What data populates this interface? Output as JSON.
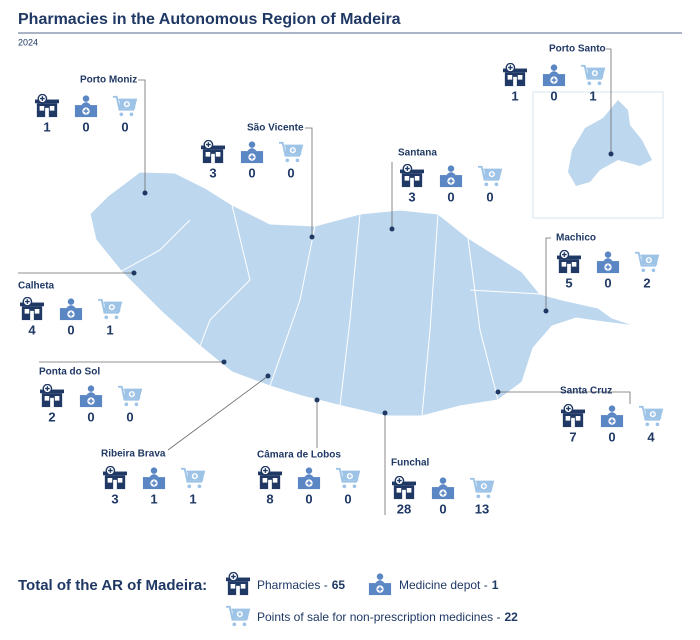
{
  "header": {
    "title": "Pharmacies in the Autonomous Region of Madeira",
    "subtitle": "2024"
  },
  "municipalities": [
    {
      "name": "Porto Moniz",
      "pharmacies": 1,
      "medicine_depots": 0,
      "points_of_sale": 0
    },
    {
      "name": "São Vicente",
      "pharmacies": 3,
      "medicine_depots": 0,
      "points_of_sale": 0
    },
    {
      "name": "Santana",
      "pharmacies": 3,
      "medicine_depots": 0,
      "points_of_sale": 0
    },
    {
      "name": "Porto Santo",
      "pharmacies": 1,
      "medicine_depots": 0,
      "points_of_sale": 1
    },
    {
      "name": "Machico",
      "pharmacies": 5,
      "medicine_depots": 0,
      "points_of_sale": 2
    },
    {
      "name": "Calheta",
      "pharmacies": 4,
      "medicine_depots": 0,
      "points_of_sale": 1
    },
    {
      "name": "Ponta do Sol",
      "pharmacies": 2,
      "medicine_depots": 0,
      "points_of_sale": 0
    },
    {
      "name": "Ribeira Brava",
      "pharmacies": 3,
      "medicine_depots": 1,
      "points_of_sale": 1
    },
    {
      "name": "Câmara de Lobos",
      "pharmacies": 8,
      "medicine_depots": 0,
      "points_of_sale": 0
    },
    {
      "name": "Funchal",
      "pharmacies": 28,
      "medicine_depots": 0,
      "points_of_sale": 13
    },
    {
      "name": "Santa Cruz",
      "pharmacies": 7,
      "medicine_depots": 0,
      "points_of_sale": 4
    }
  ],
  "legend": {
    "title": "Total of the AR of Madeira:",
    "items": [
      {
        "label": "Pharmacies -",
        "total": 65
      },
      {
        "label": "Medicine depot -",
        "total": 1
      },
      {
        "label": "Points of sale for non-prescription medicines -",
        "total": 22
      }
    ]
  }
}
